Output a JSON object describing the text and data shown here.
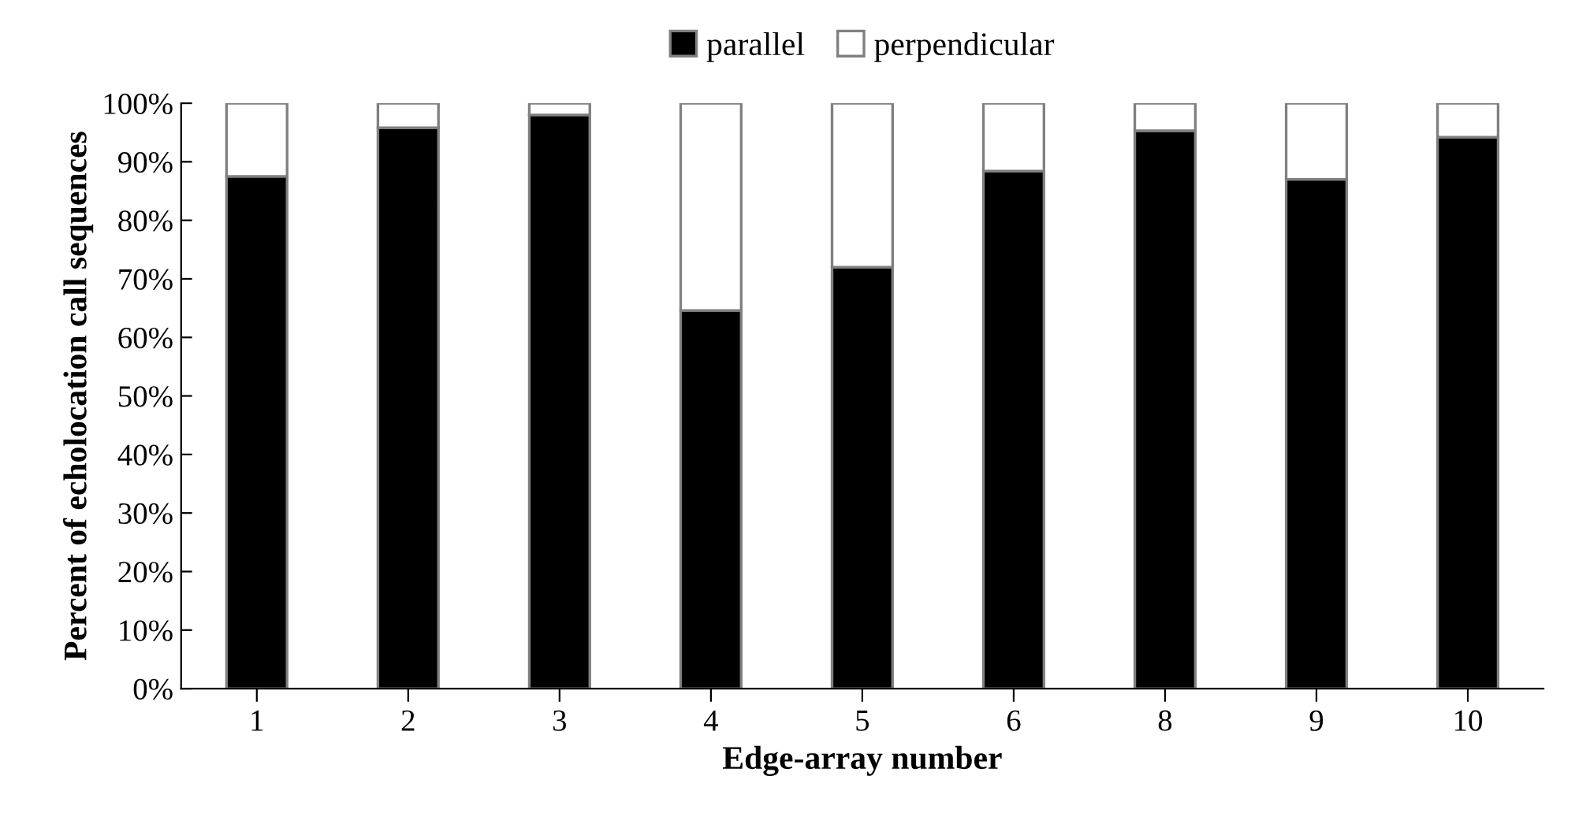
{
  "chart_data": {
    "type": "bar",
    "stacked": true,
    "xlabel": "Edge-array number",
    "ylabel": "Percent of echolocation call sequences",
    "categories": [
      "1",
      "2",
      "3",
      "4",
      "5",
      "6",
      "8",
      "9",
      "10"
    ],
    "series": [
      {
        "name": "parallel",
        "color": "#000000",
        "values": [
          87.5,
          95.8,
          98.0,
          64.6,
          72.0,
          88.4,
          95.3,
          87.0,
          94.2
        ]
      },
      {
        "name": "perpendicular",
        "color": "#ffffff",
        "values": [
          12.5,
          4.2,
          2.0,
          35.4,
          28.0,
          11.6,
          4.7,
          13.0,
          5.8
        ]
      }
    ],
    "ylim": [
      0,
      100
    ],
    "yticks": [
      {
        "value": 0,
        "label": "0%"
      },
      {
        "value": 10,
        "label": "10%"
      },
      {
        "value": 20,
        "label": "20%"
      },
      {
        "value": 30,
        "label": "30%"
      },
      {
        "value": 40,
        "label": "40%"
      },
      {
        "value": 50,
        "label": "50%"
      },
      {
        "value": 60,
        "label": "60%"
      },
      {
        "value": 70,
        "label": "70%"
      },
      {
        "value": 80,
        "label": "80%"
      },
      {
        "value": 90,
        "label": "90%"
      },
      {
        "value": 100,
        "label": "100%"
      }
    ],
    "grid": false,
    "legend": "top"
  }
}
